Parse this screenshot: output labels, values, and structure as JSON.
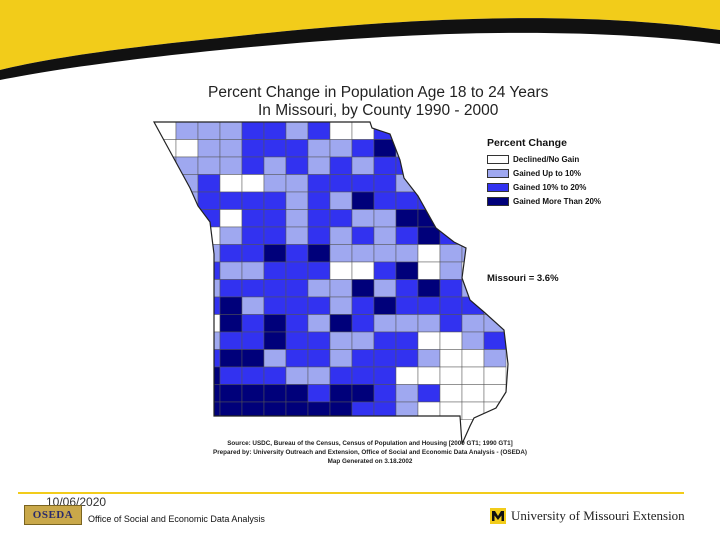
{
  "title_line1": "Percent Change in Population Age 18 to 24 Years",
  "title_line2": "In Missouri, by County  1990 - 2000",
  "legend": {
    "title": "Percent Change",
    "items": [
      {
        "label": "Declined/No Gain",
        "color": "#ffffff"
      },
      {
        "label": "Gained Up to 10%",
        "color": "#9fa8f0"
      },
      {
        "label": "Gained 10% to 20%",
        "color": "#3232f0"
      },
      {
        "label": "Gained More Than 20%",
        "color": "#00007a"
      }
    ]
  },
  "state_rate": "Missouri = 3.6%",
  "credits": {
    "source": "Source:  USDC, Bureau of the Census, Census of Population and Housing [2000 GT1; 1990 GT1]",
    "prepared": "Prepared by: University Outreach and Extension, Office of Social and Economic Data Analysis - (OSEDA)",
    "generated": "Map Generated on 3.18.2002"
  },
  "footer": {
    "date": "10/06/2020",
    "logo_text": "OSEDA",
    "org": "Office of Social and Economic Data Analysis",
    "extension": "University of Missouri Extension"
  },
  "colors": {
    "brand_gold": "#f2cc1a",
    "header_black": "#111111"
  }
}
